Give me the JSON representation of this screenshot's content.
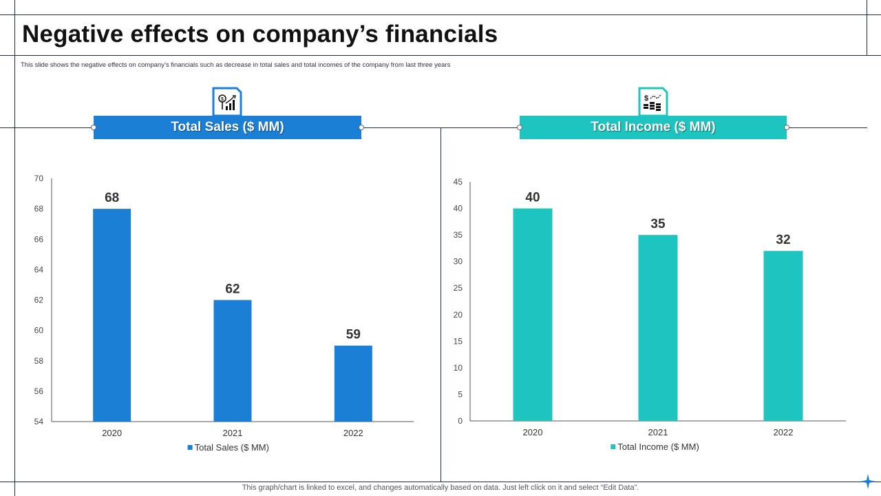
{
  "title": "Negative effects on company’s financials",
  "subtitle": "This slide shows the negative effects on company’s financials such as decrease in total sales and total incomes of the company from last three years",
  "footer_note": "This graph/chart is linked to excel,  and changes automatically based on data. Just left click on it and select “Edit Data”.",
  "colors": {
    "sales": "#1c7fd6",
    "income": "#1ec5c0",
    "frame": "#1f2a44"
  },
  "panels": {
    "sales": {
      "heading": "Total Sales ($ MM)",
      "icon": "money-growth-chart-icon"
    },
    "income": {
      "heading": "Total Income ($ MM)",
      "icon": "dollar-coins-chart-icon"
    }
  },
  "chart_data": [
    {
      "type": "bar",
      "title": "Total Sales ($ MM)",
      "categories": [
        "2020",
        "2021",
        "2022"
      ],
      "values": [
        68,
        62,
        59
      ],
      "ylim": [
        54,
        70
      ],
      "yticks": [
        54,
        56,
        58,
        60,
        62,
        64,
        66,
        68,
        70
      ],
      "legend": "Total Sales ($ MM)",
      "legend_position": "bottom",
      "grid": false
    },
    {
      "type": "bar",
      "title": "Total Income ($ MM)",
      "categories": [
        "2020",
        "2021",
        "2022"
      ],
      "values": [
        40,
        35,
        32
      ],
      "ylim": [
        0,
        45
      ],
      "yticks": [
        0,
        5,
        10,
        15,
        20,
        25,
        30,
        35,
        40,
        45
      ],
      "legend": "Total Income ($ MM)",
      "legend_position": "bottom",
      "grid": false
    }
  ]
}
